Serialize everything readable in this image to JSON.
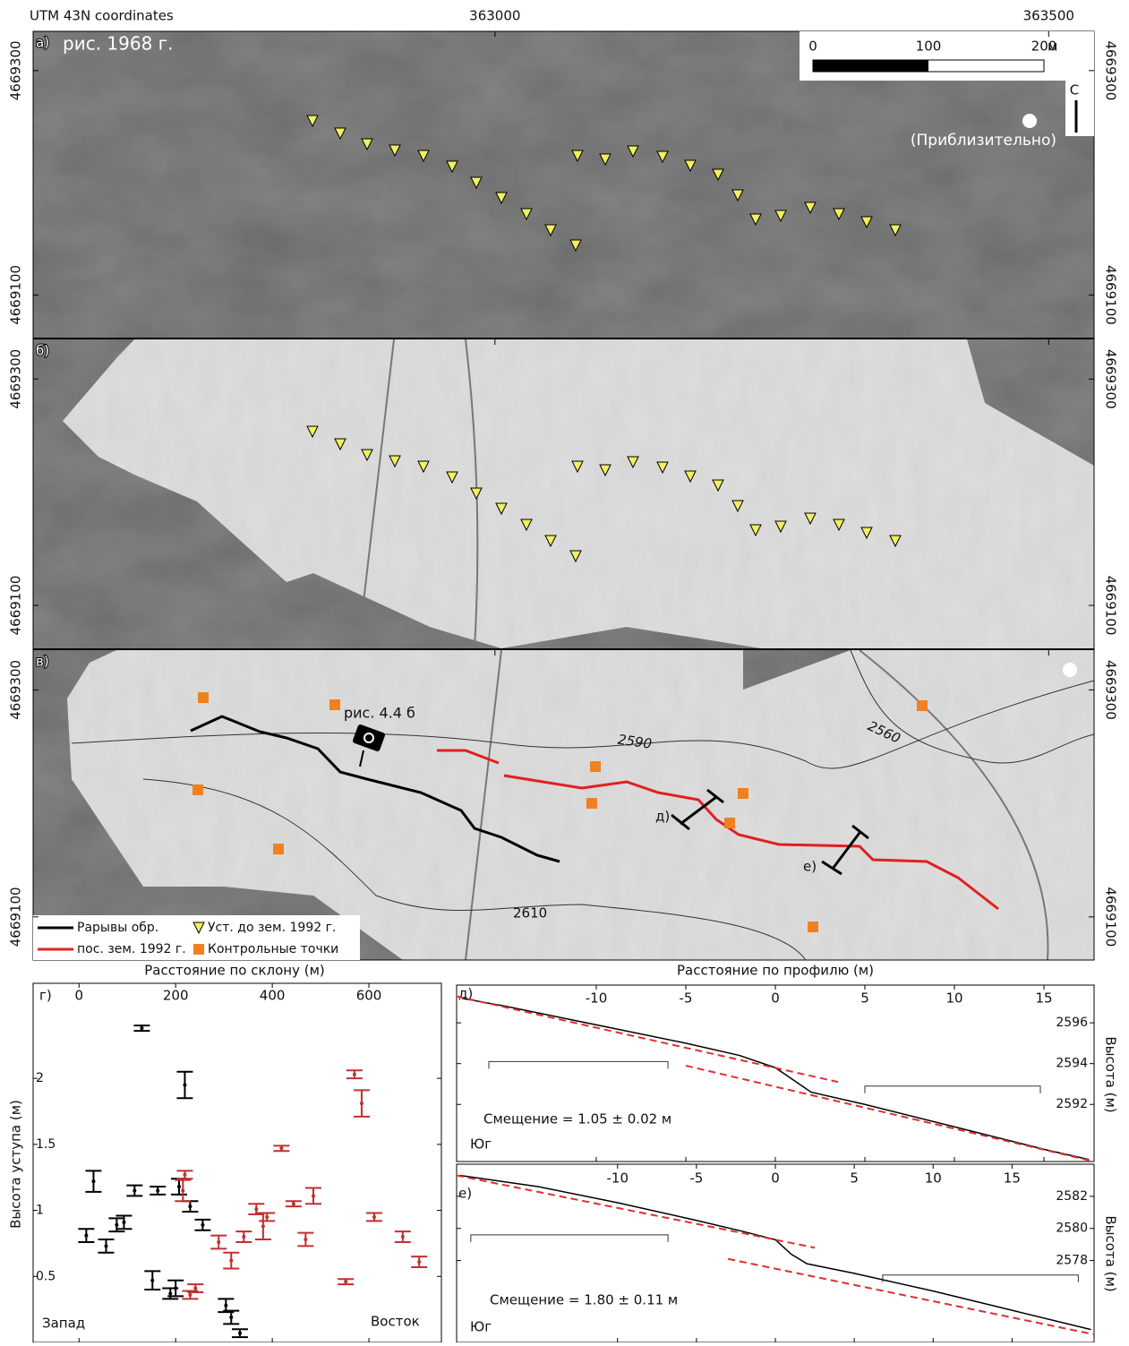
{
  "map": {
    "coord_label": "UTM 43N coordinates",
    "xlim": [
      362583,
      363541
    ],
    "ylim": [
      4669062,
      4669335
    ],
    "xticks": [
      363000,
      363500
    ],
    "yticks": [
      4669300,
      4669100
    ],
    "panels": [
      {
        "label": "а)",
        "title": "рис. 1968 г."
      },
      {
        "label": "б)"
      },
      {
        "label": "в)"
      }
    ],
    "scale_bar": {
      "ticks": [
        0,
        100,
        200
      ],
      "unit": "м"
    },
    "north_label": "С",
    "sun_note": "(Приблизительно)",
    "photo_label": "рис. 4.4 б",
    "profile_labels": [
      "д)",
      "е)"
    ],
    "contours": [
      2590,
      2560,
      2610
    ],
    "legend": [
      "Рарывы обр.",
      "Уст. до зем. 1992 г.",
      "пос. зем. 1992 г.",
      "Контрольные точки"
    ],
    "colors": {
      "pre": "#000000",
      "post": "#e02020",
      "marker": "#f0f060",
      "control": "#f08020"
    }
  },
  "chart_data": [
    {
      "type": "scatter",
      "label": "г)",
      "xlabel": "Расстояние по склону (м)",
      "ylabel": "Высота уступа (м)",
      "xlim": [
        -95,
        750
      ],
      "ylim": [
        0,
        2.72
      ],
      "xticks": [
        0,
        200,
        400,
        600
      ],
      "yticks": [
        0.5,
        1,
        1.5,
        2
      ],
      "annotations": [
        "Запад",
        "Восток"
      ],
      "series": [
        {
          "color": "#000000",
          "x": [
            130,
            219,
            30,
            115,
            163,
            207,
            230,
            15,
            56,
            78,
            93,
            256,
            152,
            200,
            189,
            304,
            315,
            333
          ],
          "values": [
            2.38,
            1.95,
            1.22,
            1.15,
            1.15,
            1.18,
            1.03,
            0.81,
            0.73,
            0.89,
            0.91,
            0.89,
            0.47,
            0.41,
            0.37,
            0.28,
            0.19,
            0.07
          ],
          "errors": [
            0.02,
            0.1,
            0.08,
            0.04,
            0.03,
            0.06,
            0.04,
            0.05,
            0.05,
            0.05,
            0.05,
            0.04,
            0.07,
            0.06,
            0.04,
            0.05,
            0.05,
            0.03
          ]
        },
        {
          "color": "#c03030",
          "x": [
            570,
            585,
            419,
            219,
            215,
            485,
            444,
            367,
            389,
            381,
            611,
            670,
            341,
            469,
            289,
            315,
            704,
            552,
            241,
            230
          ],
          "values": [
            2.03,
            1.81,
            1.47,
            1.27,
            1.15,
            1.11,
            1.05,
            1.01,
            0.95,
            0.88,
            0.95,
            0.8,
            0.8,
            0.78,
            0.76,
            0.62,
            0.61,
            0.46,
            0.41,
            0.36
          ],
          "errors": [
            0.03,
            0.1,
            0.02,
            0.03,
            0.08,
            0.06,
            0.02,
            0.04,
            0.03,
            0.1,
            0.03,
            0.04,
            0.04,
            0.05,
            0.05,
            0.06,
            0.04,
            0.02,
            0.03,
            0.03
          ]
        }
      ]
    },
    {
      "type": "line",
      "label": "д)",
      "xlabel": "Расстояние по профилю (м)",
      "ylabel": "Высота (м)",
      "annotation": "Смещение = 1.05 ± 0.02 м",
      "direction": "Юг",
      "xlim": [
        -17.8,
        17.8
      ],
      "ylim": [
        2589.2,
        2597.85
      ],
      "xticks": [
        -10,
        -5,
        0,
        5,
        10,
        15
      ],
      "yticks": [
        2592,
        2594,
        2596
      ],
      "series": [
        {
          "color": "#000000",
          "x": [
            -17.5,
            -15,
            -10,
            -5,
            -2,
            0,
            1,
            2,
            5,
            10,
            15,
            17.5
          ],
          "values": [
            2597.2,
            2596.8,
            2595.9,
            2595.0,
            2594.4,
            2593.8,
            2593.2,
            2592.6,
            2592.0,
            2590.9,
            2589.8,
            2589.3
          ]
        },
        {
          "color": "#e03030",
          "dashed": true,
          "x": [
            -17.8,
            3.5
          ],
          "values": [
            2597.3,
            2593.1
          ]
        },
        {
          "color": "#e03030",
          "dashed": true,
          "x": [
            -5,
            17.8
          ],
          "values": [
            2593.9,
            2589.2
          ]
        }
      ],
      "windows": [
        {
          "x": [
            -16,
            -6
          ],
          "y": 2594.1
        },
        {
          "x": [
            5,
            14.8
          ],
          "y": 2592.9
        }
      ]
    },
    {
      "type": "line",
      "label": "е)",
      "ylabel": "Высота (м)",
      "annotation": "Смещение = 1.80 ± 0.11 м",
      "direction": "Юг",
      "xlim": [
        -20.2,
        20.2
      ],
      "ylim": [
        2572.9,
        2584
      ],
      "xticks": [
        -10,
        -5,
        0,
        5,
        10,
        15
      ],
      "yticks": [
        2578,
        2580,
        2582
      ],
      "series": [
        {
          "color": "#000000",
          "x": [
            -20,
            -15,
            -10,
            -5,
            -2,
            0,
            1,
            2,
            5,
            10,
            15,
            20
          ],
          "values": [
            2583.3,
            2582.6,
            2581.6,
            2580.5,
            2579.8,
            2579.3,
            2578.4,
            2577.8,
            2577.2,
            2576.1,
            2574.9,
            2573.7
          ]
        },
        {
          "color": "#e03030",
          "dashed": true,
          "x": [
            -20.2,
            2.5
          ],
          "values": [
            2583.3,
            2578.8
          ]
        },
        {
          "color": "#e03030",
          "dashed": true,
          "x": [
            -3,
            20.2
          ],
          "values": [
            2578.1,
            2573.4
          ]
        }
      ],
      "windows": [
        {
          "x": [
            -19.3,
            -6.8
          ],
          "y": 2579.6
        },
        {
          "x": [
            6.8,
            19.2
          ],
          "y": 2577.1
        }
      ]
    }
  ]
}
